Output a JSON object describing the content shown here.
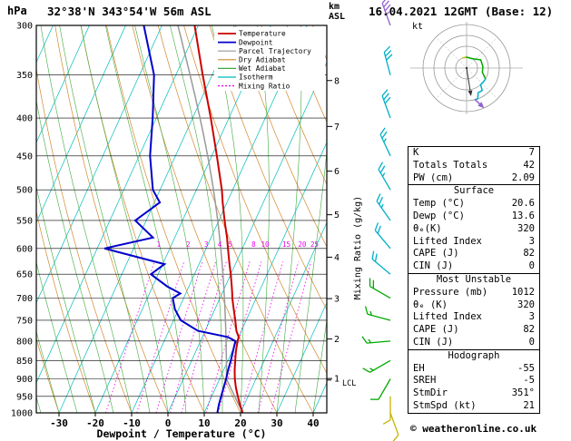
{
  "header": {
    "pressure_axis_label": "hPa",
    "station_title": "32°38'N 343°54'W 56m ASL",
    "altitude_axis_label": "km\nASL",
    "datetime_title": "16.04.2021 12GMT (Base: 12)"
  },
  "chart_data": {
    "type": "skewt-logp-sounding",
    "xlabel": "Dewpoint / Temperature (°C)",
    "x_ticks": [
      -30,
      -20,
      -10,
      0,
      10,
      20,
      30,
      40
    ],
    "x_range_c": [
      -30,
      40
    ],
    "pressure_ticks_hpa": [
      300,
      350,
      400,
      450,
      500,
      550,
      600,
      650,
      700,
      750,
      800,
      850,
      900,
      950,
      1000
    ],
    "pressure_range_hpa": [
      300,
      1000
    ],
    "km_ticks": [
      1,
      2,
      3,
      4,
      5,
      6,
      7,
      8
    ],
    "mixing_ratio_gkg": [
      1,
      2,
      3,
      4,
      5,
      8,
      10,
      15,
      20,
      25
    ],
    "mixing_ratio_axis_label": "Mixing Ratio (g/kg)",
    "lcl": {
      "label": "LCL",
      "pressure_hpa": 903
    },
    "colors": {
      "temperature": "#cc0000",
      "dewpoint": "#0000cc",
      "parcel": "#999999",
      "dry_adiabat": "#d2882d",
      "wet_adiabat": "#3faa3f",
      "isotherm": "#00bbbb",
      "mixing_ratio": "#ee00ee"
    },
    "legend": [
      {
        "label": "Temperature",
        "color": "#cc0000",
        "dash": ""
      },
      {
        "label": "Dewpoint",
        "color": "#0000cc",
        "dash": ""
      },
      {
        "label": "Parcel Trajectory",
        "color": "#999999",
        "dash": ""
      },
      {
        "label": "Dry Adiabat",
        "color": "#d2882d",
        "dash": ""
      },
      {
        "label": "Wet Adiabat",
        "color": "#3faa3f",
        "dash": ""
      },
      {
        "label": "Isotherm",
        "color": "#00bbbb",
        "dash": ""
      },
      {
        "label": "Mixing Ratio",
        "color": "#ee00ee",
        "dash": "2 2"
      }
    ],
    "sounding": {
      "pressure_hpa": [
        1000,
        975,
        950,
        925,
        900,
        875,
        850,
        825,
        800,
        790,
        775,
        750,
        725,
        700,
        690,
        675,
        650,
        630,
        600,
        580,
        550,
        520,
        500,
        450,
        400,
        350,
        300
      ],
      "temperature_c": [
        20.6,
        18.8,
        17.2,
        15.6,
        14.2,
        13.0,
        12.0,
        11.0,
        10.2,
        10.0,
        8.6,
        7.0,
        5.2,
        3.4,
        2.8,
        1.8,
        0.0,
        -1.6,
        -4.0,
        -5.6,
        -8.4,
        -11.2,
        -13.0,
        -18.6,
        -25.0,
        -32.6,
        -41.0
      ],
      "dewpoint_c": [
        13.6,
        13.0,
        12.6,
        12.2,
        11.8,
        11.2,
        10.8,
        10.2,
        9.6,
        7.0,
        -2.0,
        -8.0,
        -11.0,
        -13.0,
        -11.5,
        -16.0,
        -22.0,
        -19.5,
        -38.0,
        -26.0,
        -33.0,
        -28.5,
        -32.0,
        -37.0,
        -41.0,
        -46.0,
        -55.0
      ]
    },
    "parcel": {
      "surface_temp_c": 20.6,
      "surface_dewp_c": 13.6,
      "lcl_pressure_hpa": 903
    },
    "wind_barbs": [
      {
        "p": 1000,
        "dir_deg": 160,
        "speed_kt": 10,
        "color": "#c8b400"
      },
      {
        "p": 950,
        "dir_deg": 180,
        "speed_kt": 10,
        "color": "#c8b400"
      },
      {
        "p": 900,
        "dir_deg": 210,
        "speed_kt": 10,
        "color": "#00aa00"
      },
      {
        "p": 850,
        "dir_deg": 240,
        "speed_kt": 15,
        "color": "#00aa00"
      },
      {
        "p": 800,
        "dir_deg": 265,
        "speed_kt": 15,
        "color": "#00aa00"
      },
      {
        "p": 750,
        "dir_deg": 285,
        "speed_kt": 15,
        "color": "#00aa00"
      },
      {
        "p": 700,
        "dir_deg": 300,
        "speed_kt": 20,
        "color": "#00aa00"
      },
      {
        "p": 650,
        "dir_deg": 310,
        "speed_kt": 20,
        "color": "#00b0c8"
      },
      {
        "p": 600,
        "dir_deg": 320,
        "speed_kt": 20,
        "color": "#00b0c8"
      },
      {
        "p": 550,
        "dir_deg": 325,
        "speed_kt": 25,
        "color": "#00b0c8"
      },
      {
        "p": 500,
        "dir_deg": 330,
        "speed_kt": 25,
        "color": "#00b0c8"
      },
      {
        "p": 450,
        "dir_deg": 335,
        "speed_kt": 25,
        "color": "#00b0c8"
      },
      {
        "p": 400,
        "dir_deg": 340,
        "speed_kt": 30,
        "color": "#00b0c8"
      },
      {
        "p": 350,
        "dir_deg": 345,
        "speed_kt": 30,
        "color": "#00b0c8"
      },
      {
        "p": 300,
        "dir_deg": 340,
        "speed_kt": 35,
        "color": "#9060d0"
      }
    ],
    "hodograph": {
      "unit_label": "kt",
      "ring_interval_kt": 10,
      "rings_kt": [
        10,
        20,
        30,
        40
      ],
      "storm_dir_deg": 351,
      "storm_speed_kt": 21
    }
  },
  "table": {
    "sections": [
      {
        "header": null,
        "rows": [
          [
            "K",
            "7"
          ],
          [
            "Totals Totals",
            "42"
          ],
          [
            "PW (cm)",
            "2.09"
          ]
        ]
      },
      {
        "header": "Surface",
        "rows": [
          [
            "Temp (°C)",
            "20.6"
          ],
          [
            "Dewp (°C)",
            "13.6"
          ],
          [
            "θₑ(K)",
            "320"
          ],
          [
            "Lifted Index",
            "3"
          ],
          [
            "CAPE (J)",
            "82"
          ],
          [
            "CIN (J)",
            "0"
          ]
        ]
      },
      {
        "header": "Most Unstable",
        "rows": [
          [
            "Pressure (mb)",
            "1012"
          ],
          [
            "θₑ (K)",
            "320"
          ],
          [
            "Lifted Index",
            "3"
          ],
          [
            "CAPE (J)",
            "82"
          ],
          [
            "CIN (J)",
            "0"
          ]
        ]
      },
      {
        "header": "Hodograph",
        "rows": [
          [
            "EH",
            "-55"
          ],
          [
            "SREH",
            "-5"
          ],
          [
            "StmDir",
            "351°"
          ],
          [
            "StmSpd (kt)",
            "21"
          ]
        ]
      }
    ]
  },
  "footer": {
    "copyright": "© weatheronline.co.uk"
  }
}
